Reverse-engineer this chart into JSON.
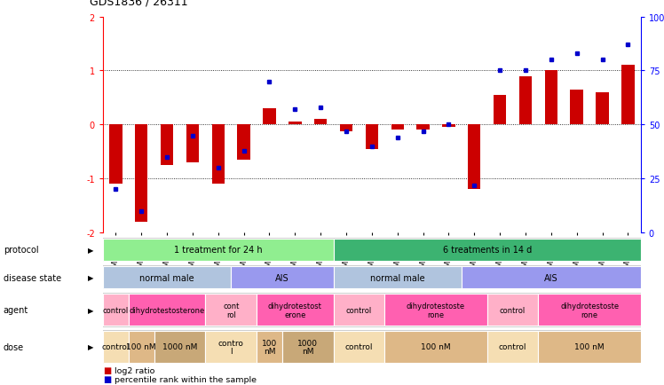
{
  "title": "GDS1836 / 26311",
  "samples": [
    "GSM88440",
    "GSM88442",
    "GSM88422",
    "GSM88438",
    "GSM88423",
    "GSM88441",
    "GSM88429",
    "GSM88435",
    "GSM88439",
    "GSM88424",
    "GSM88431",
    "GSM88436",
    "GSM88426",
    "GSM88432",
    "GSM88434",
    "GSM88427",
    "GSM88430",
    "GSM88437",
    "GSM88425",
    "GSM88428",
    "GSM88433"
  ],
  "log2_ratio": [
    -1.1,
    -1.8,
    -0.75,
    -0.7,
    -1.1,
    -0.65,
    0.3,
    0.05,
    0.1,
    -0.12,
    -0.45,
    -0.1,
    -0.1,
    -0.05,
    -1.2,
    0.55,
    0.9,
    1.0,
    0.65,
    0.6,
    1.1
  ],
  "percentile": [
    20,
    10,
    35,
    45,
    30,
    38,
    70,
    57,
    58,
    47,
    40,
    44,
    47,
    50,
    22,
    75,
    75,
    80,
    83,
    80,
    87
  ],
  "protocol_groups": [
    {
      "label": "1 treatment for 24 h",
      "start": 0,
      "end": 8,
      "color": "#90EE90"
    },
    {
      "label": "6 treatments in 14 d",
      "start": 9,
      "end": 20,
      "color": "#3CB371"
    }
  ],
  "disease_groups": [
    {
      "label": "normal male",
      "start": 0,
      "end": 4,
      "color": "#B0C4DE"
    },
    {
      "label": "AIS",
      "start": 5,
      "end": 8,
      "color": "#9999EE"
    },
    {
      "label": "normal male",
      "start": 9,
      "end": 13,
      "color": "#B0C4DE"
    },
    {
      "label": "AIS",
      "start": 14,
      "end": 20,
      "color": "#9999EE"
    }
  ],
  "agent_groups": [
    {
      "label": "control",
      "start": 0,
      "end": 0,
      "color": "#FFB0C8"
    },
    {
      "label": "dihydrotestosterone",
      "start": 1,
      "end": 3,
      "color": "#FF60B0"
    },
    {
      "label": "cont\nrol",
      "start": 4,
      "end": 5,
      "color": "#FFB0C8"
    },
    {
      "label": "dihydrotestost\nerone",
      "start": 6,
      "end": 8,
      "color": "#FF60B0"
    },
    {
      "label": "control",
      "start": 9,
      "end": 10,
      "color": "#FFB0C8"
    },
    {
      "label": "dihydrotestoste\nrone",
      "start": 11,
      "end": 14,
      "color": "#FF60B0"
    },
    {
      "label": "control",
      "start": 15,
      "end": 16,
      "color": "#FFB0C8"
    },
    {
      "label": "dihydrotestoste\nrone",
      "start": 17,
      "end": 20,
      "color": "#FF60B0"
    }
  ],
  "dose_groups": [
    {
      "label": "control",
      "start": 0,
      "end": 0,
      "color": "#F5DEB3"
    },
    {
      "label": "100 nM",
      "start": 1,
      "end": 1,
      "color": "#DEB887"
    },
    {
      "label": "1000 nM",
      "start": 2,
      "end": 3,
      "color": "#C8A878"
    },
    {
      "label": "contro\nl",
      "start": 4,
      "end": 5,
      "color": "#F5DEB3"
    },
    {
      "label": "100\nnM",
      "start": 6,
      "end": 6,
      "color": "#DEB887"
    },
    {
      "label": "1000\nnM",
      "start": 7,
      "end": 8,
      "color": "#C8A878"
    },
    {
      "label": "control",
      "start": 9,
      "end": 10,
      "color": "#F5DEB3"
    },
    {
      "label": "100 nM",
      "start": 11,
      "end": 14,
      "color": "#DEB887"
    },
    {
      "label": "control",
      "start": 15,
      "end": 16,
      "color": "#F5DEB3"
    },
    {
      "label": "100 nM",
      "start": 17,
      "end": 20,
      "color": "#DEB887"
    }
  ],
  "bar_color": "#CC0000",
  "dot_color": "#0000CC",
  "row_labels": [
    "protocol",
    "disease state",
    "agent",
    "dose"
  ]
}
